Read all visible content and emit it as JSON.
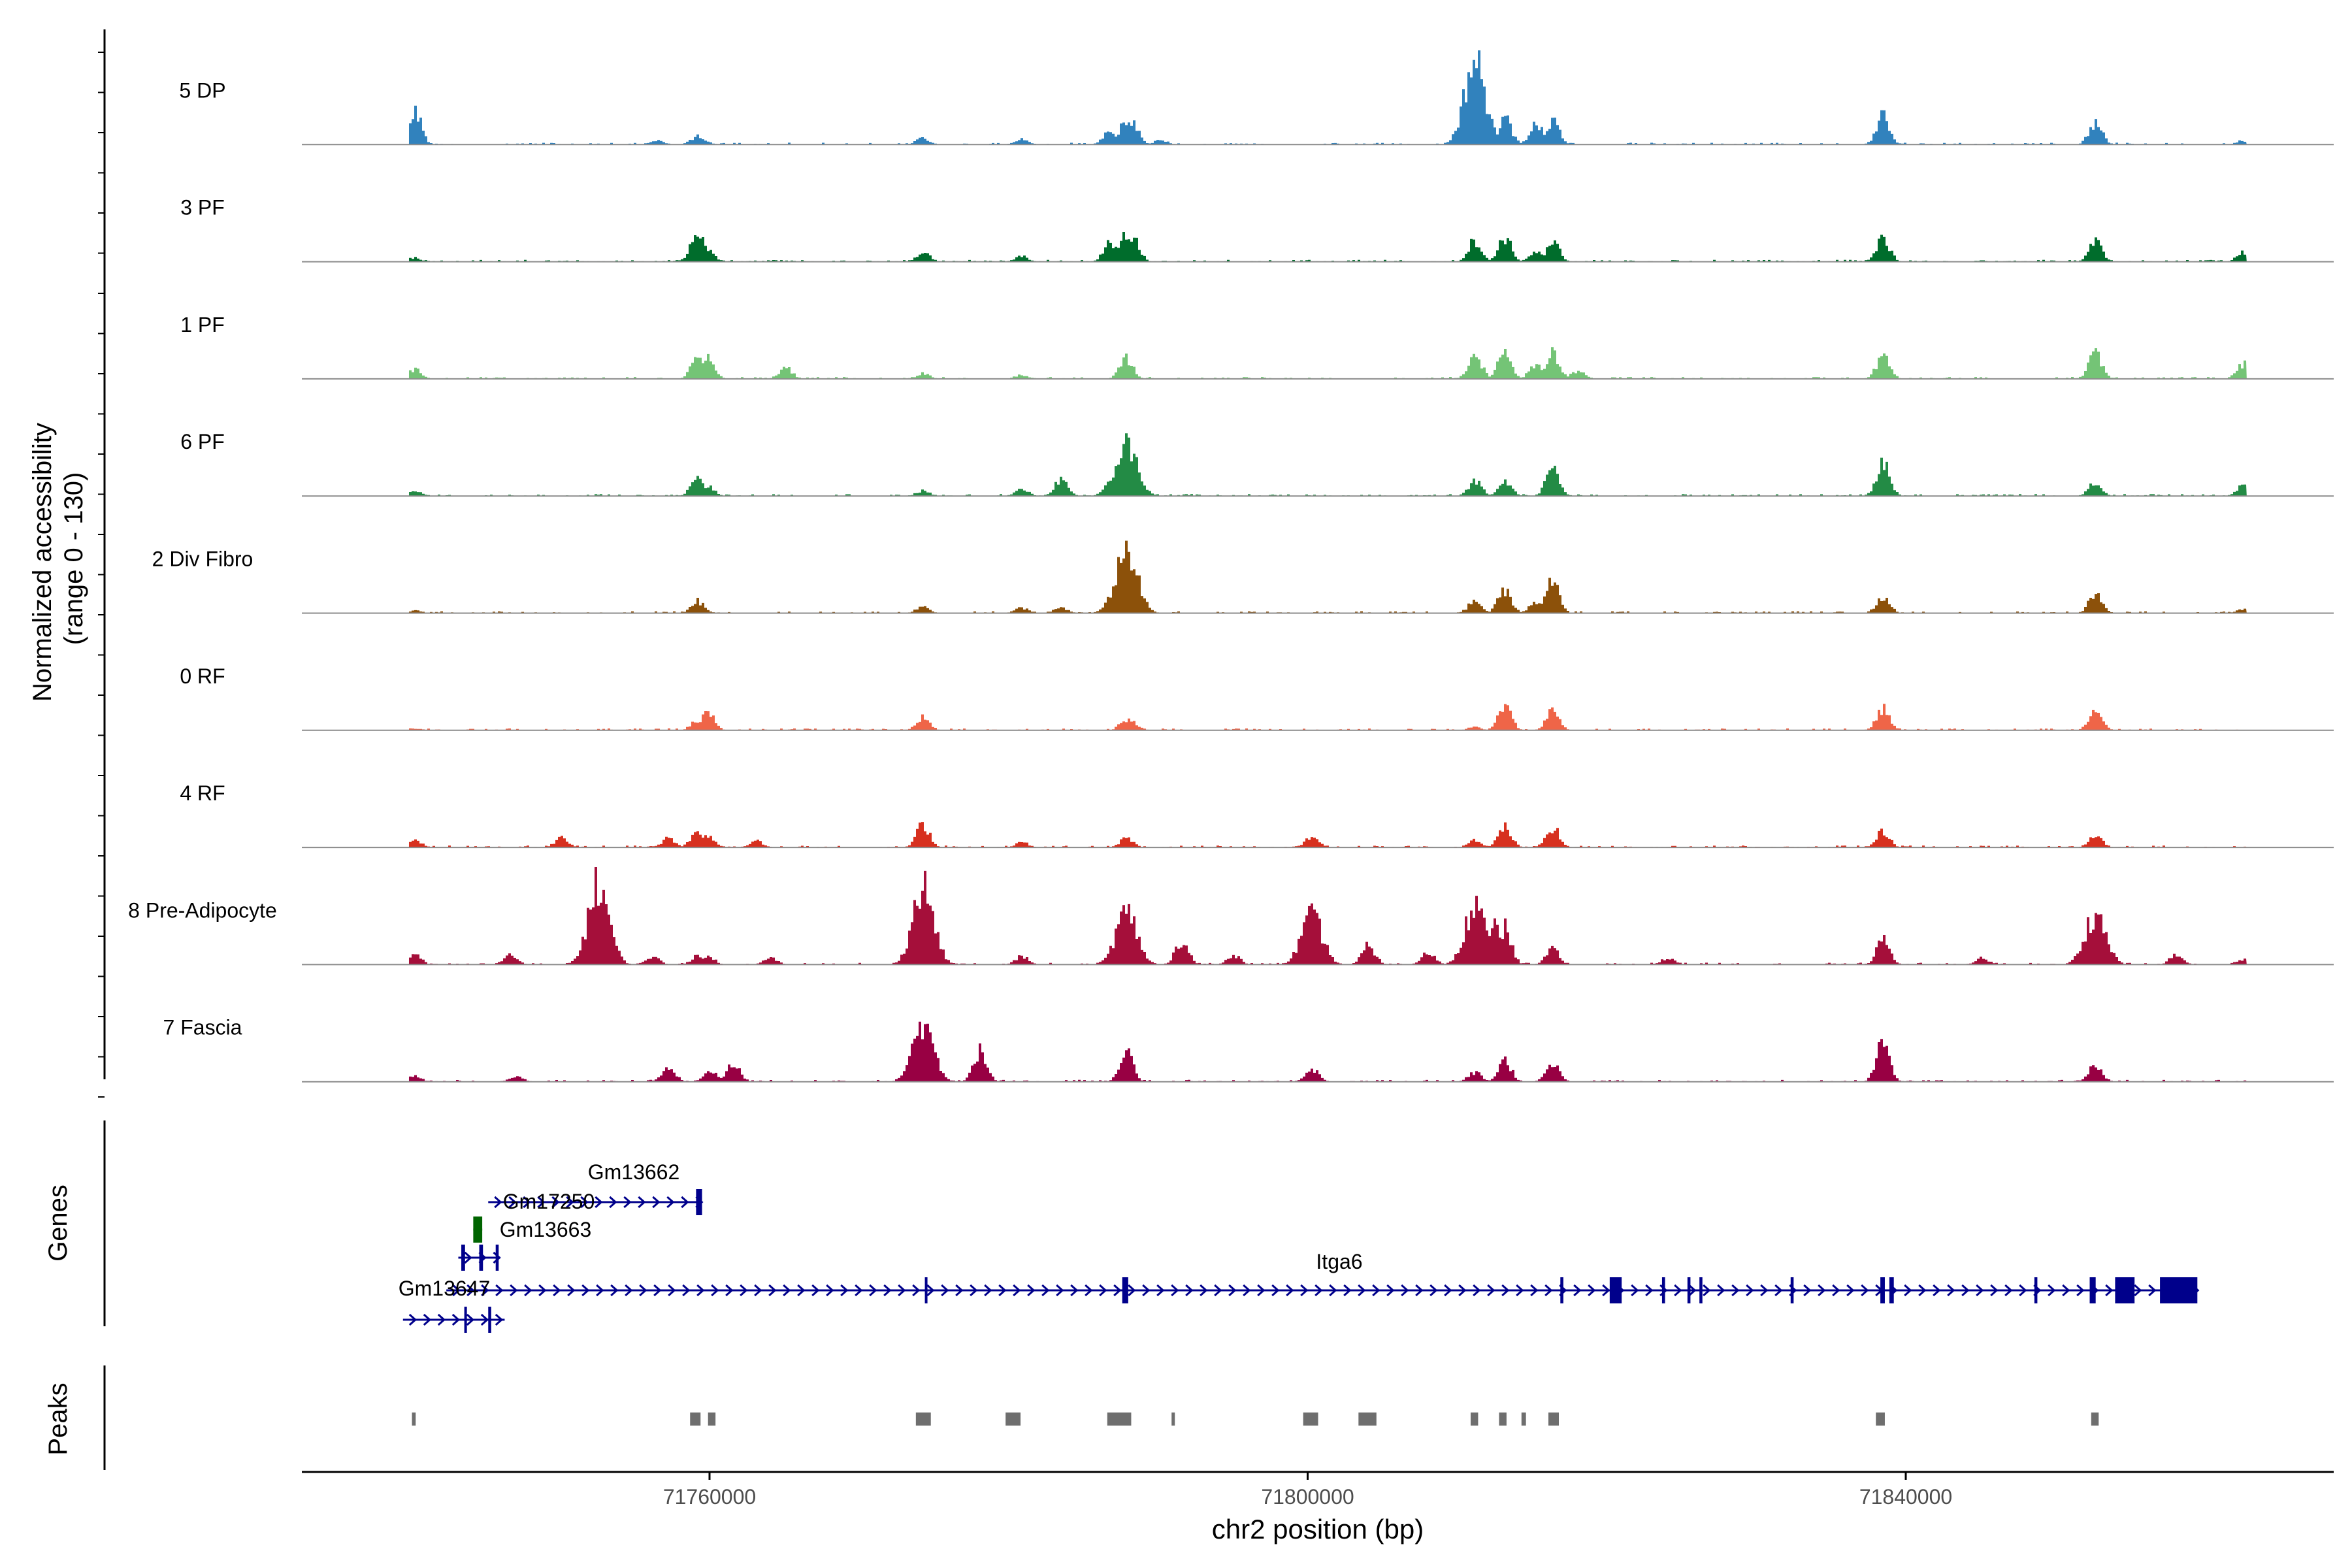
{
  "chart_data": {
    "type": "area",
    "title": "",
    "ylabel": "Normalized accessibility (range 0 - 130)",
    "ylabel_lines": [
      "Normalized accessibility",
      "(range 0 - 130)"
    ],
    "xlabel": "chr2 position (bp)",
    "region": {
      "chrom": "chr2",
      "start": 71734000,
      "end": 71867000
    },
    "ylim": [
      0,
      130
    ],
    "x_ticks": [
      71760000,
      71800000,
      71840000
    ],
    "x_tick_labels": [
      "71760000",
      "71800000",
      "71840000"
    ],
    "series": [
      {
        "name": "5 DP",
        "color": "#3182bd",
        "peaks": [
          [
            71740200,
            48
          ],
          [
            71756500,
            6
          ],
          [
            71759100,
            12
          ],
          [
            71759500,
            6
          ],
          [
            71774200,
            10
          ],
          [
            71780800,
            8
          ],
          [
            71786700,
            22
          ],
          [
            71787800,
            38
          ],
          [
            71788200,
            32
          ],
          [
            71790100,
            7
          ],
          [
            71811100,
            125
          ],
          [
            71813100,
            40
          ],
          [
            71815200,
            30
          ],
          [
            71816300,
            34
          ],
          [
            71838400,
            42
          ],
          [
            71852600,
            32
          ],
          [
            71862500,
            6
          ]
        ]
      },
      {
        "name": "3 PF",
        "color": "#006d2c",
        "peaks": [
          [
            71740200,
            6
          ],
          [
            71759100,
            45
          ],
          [
            71759800,
            16
          ],
          [
            71774200,
            14
          ],
          [
            71780800,
            8
          ],
          [
            71786700,
            28
          ],
          [
            71787800,
            42
          ],
          [
            71788200,
            38
          ],
          [
            71811100,
            32
          ],
          [
            71813100,
            36
          ],
          [
            71815200,
            14
          ],
          [
            71816300,
            30
          ],
          [
            71838400,
            34
          ],
          [
            71852600,
            30
          ],
          [
            71862500,
            14
          ]
        ]
      },
      {
        "name": "1 PF",
        "color": "#74c476",
        "peaks": [
          [
            71740200,
            14
          ],
          [
            71759100,
            32
          ],
          [
            71759800,
            30
          ],
          [
            71765000,
            16
          ],
          [
            71774200,
            8
          ],
          [
            71780800,
            6
          ],
          [
            71787800,
            30
          ],
          [
            71811100,
            38
          ],
          [
            71813100,
            44
          ],
          [
            71815200,
            22
          ],
          [
            71816300,
            38
          ],
          [
            71818000,
            12
          ],
          [
            71838400,
            34
          ],
          [
            71852600,
            38
          ],
          [
            71862500,
            22
          ]
        ]
      },
      {
        "name": "6 PF",
        "color": "#238b45",
        "peaks": [
          [
            71740200,
            8
          ],
          [
            71759100,
            28
          ],
          [
            71759800,
            14
          ],
          [
            71774200,
            8
          ],
          [
            71780800,
            10
          ],
          [
            71783400,
            24
          ],
          [
            71786700,
            20
          ],
          [
            71787800,
            78
          ],
          [
            71788200,
            48
          ],
          [
            71811100,
            22
          ],
          [
            71813100,
            24
          ],
          [
            71816300,
            42
          ],
          [
            71838400,
            52
          ],
          [
            71852600,
            20
          ],
          [
            71862500,
            16
          ]
        ]
      },
      {
        "name": "2 Div Fibro",
        "color": "#8c510a",
        "peaks": [
          [
            71740200,
            4
          ],
          [
            71759100,
            18
          ],
          [
            71774200,
            10
          ],
          [
            71780800,
            8
          ],
          [
            71783400,
            8
          ],
          [
            71786700,
            16
          ],
          [
            71787800,
            95
          ],
          [
            71788200,
            55
          ],
          [
            71811100,
            18
          ],
          [
            71813100,
            36
          ],
          [
            71815200,
            16
          ],
          [
            71816300,
            46
          ],
          [
            71838400,
            24
          ],
          [
            71852600,
            28
          ],
          [
            71862500,
            6
          ]
        ]
      },
      {
        "name": "0 RF",
        "color": "#ef6548",
        "peaks": [
          [
            71740200,
            3
          ],
          [
            71759100,
            14
          ],
          [
            71759800,
            30
          ],
          [
            71774200,
            20
          ],
          [
            71787800,
            16
          ],
          [
            71788200,
            12
          ],
          [
            71811100,
            5
          ],
          [
            71813100,
            36
          ],
          [
            71816300,
            30
          ],
          [
            71838400,
            32
          ],
          [
            71852600,
            28
          ]
        ]
      },
      {
        "name": "4 RF",
        "color": "#d7301f",
        "peaks": [
          [
            71740200,
            12
          ],
          [
            71750000,
            14
          ],
          [
            71757200,
            14
          ],
          [
            71759100,
            24
          ],
          [
            71759800,
            18
          ],
          [
            71763000,
            10
          ],
          [
            71774200,
            34
          ],
          [
            71780800,
            8
          ],
          [
            71787800,
            14
          ],
          [
            71800200,
            16
          ],
          [
            71811100,
            12
          ],
          [
            71813100,
            30
          ],
          [
            71816300,
            30
          ],
          [
            71838400,
            24
          ],
          [
            71852600,
            18
          ]
        ]
      },
      {
        "name": "8 Pre-Adipocyte",
        "color": "#a50f3a",
        "peaks": [
          [
            71740200,
            14
          ],
          [
            71746600,
            14
          ],
          [
            71752500,
            120
          ],
          [
            71756100,
            12
          ],
          [
            71759100,
            12
          ],
          [
            71759800,
            14
          ],
          [
            71764000,
            10
          ],
          [
            71774200,
            115
          ],
          [
            71780800,
            12
          ],
          [
            71787800,
            78
          ],
          [
            71788200,
            42
          ],
          [
            71791500,
            36
          ],
          [
            71795000,
            14
          ],
          [
            71799800,
            24
          ],
          [
            71800200,
            72
          ],
          [
            71804000,
            28
          ],
          [
            71808000,
            18
          ],
          [
            71811100,
            85
          ],
          [
            71812500,
            60
          ],
          [
            71813100,
            55
          ],
          [
            71816300,
            22
          ],
          [
            71824000,
            10
          ],
          [
            71838400,
            36
          ],
          [
            71845000,
            10
          ],
          [
            71852600,
            75
          ],
          [
            71858000,
            14
          ],
          [
            71862500,
            8
          ]
        ]
      },
      {
        "name": "7 Fascia",
        "color": "#980043",
        "peaks": [
          [
            71740200,
            8
          ],
          [
            71747000,
            8
          ],
          [
            71757200,
            20
          ],
          [
            71760000,
            16
          ],
          [
            71761500,
            30
          ],
          [
            71774200,
            88
          ],
          [
            71778000,
            46
          ],
          [
            71787800,
            42
          ],
          [
            71800200,
            20
          ],
          [
            71811100,
            14
          ],
          [
            71813100,
            32
          ],
          [
            71816300,
            26
          ],
          [
            71838400,
            58
          ],
          [
            71852600,
            24
          ]
        ]
      }
    ],
    "genes_label": "Genes",
    "genes": [
      {
        "name": "Gm13662",
        "start": 71745200,
        "end": 71759500,
        "row": 0,
        "strand": "+",
        "color": "#00008b",
        "exons": [
          [
            71759100,
            71759500
          ]
        ]
      },
      {
        "name": "Gm17250",
        "start": 71744200,
        "end": 71744800,
        "row": 1,
        "strand": "+",
        "color": "#006400",
        "exons": [
          [
            71744200,
            71744800
          ]
        ]
      },
      {
        "name": "Gm13663",
        "start": 71743200,
        "end": 71746000,
        "row": 2,
        "strand": "+",
        "color": "#00008b",
        "exons": [
          [
            71743400,
            71743650
          ],
          [
            71744600,
            71744850
          ],
          [
            71745700,
            71745900
          ]
        ]
      },
      {
        "name": "Itga6",
        "start": 71742400,
        "end": 71859500,
        "row": 3,
        "strand": "+",
        "color": "#00008b",
        "exons": [
          [
            71774400,
            71774550
          ],
          [
            71787600,
            71788000
          ],
          [
            71816900,
            71817100
          ],
          [
            71820200,
            71821000
          ],
          [
            71823700,
            71823900
          ],
          [
            71825400,
            71825600
          ],
          [
            71826200,
            71826400
          ],
          [
            71832300,
            71832500
          ],
          [
            71838300,
            71838600
          ],
          [
            71838900,
            71839200
          ],
          [
            71848600,
            71848800
          ],
          [
            71852300,
            71852700
          ],
          [
            71854000,
            71855300
          ],
          [
            71857000,
            71859500
          ]
        ]
      },
      {
        "name": "Gm13647",
        "start": 71739500,
        "end": 71746300,
        "row": 4,
        "strand": "+",
        "color": "#00008b",
        "exons": [
          [
            71743600,
            71743700
          ],
          [
            71745200,
            71745400
          ]
        ]
      }
    ],
    "peaks_label": "Peaks",
    "peak_regions": [
      [
        71740100,
        71740350
      ],
      [
        71758700,
        71759400
      ],
      [
        71759900,
        71760400
      ],
      [
        71773800,
        71774800
      ],
      [
        71779800,
        71780800
      ],
      [
        71786600,
        71788200
      ],
      [
        71790900,
        71791100
      ],
      [
        71799700,
        71800700
      ],
      [
        71803400,
        71804600
      ],
      [
        71810900,
        71811400
      ],
      [
        71812800,
        71813300
      ],
      [
        71814300,
        71814600
      ],
      [
        71816100,
        71816800
      ],
      [
        71838000,
        71838600
      ],
      [
        71852400,
        71852900
      ]
    ]
  }
}
